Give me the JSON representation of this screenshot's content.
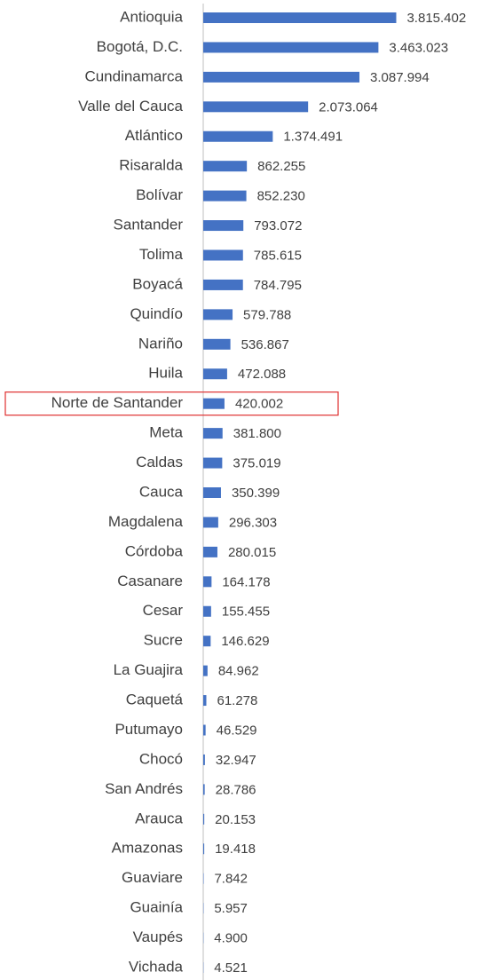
{
  "chart_data": {
    "type": "barh",
    "categories": [
      "Antioquia",
      "Bogotá, D.C.",
      "Cundinamarca",
      "Valle del Cauca",
      "Atlántico",
      "Risaralda",
      "Bolívar",
      "Santander",
      "Tolima",
      "Boyacá",
      "Quindío",
      "Nariño",
      "Huila",
      "Norte de Santander",
      "Meta",
      "Caldas",
      "Cauca",
      "Magdalena",
      "Córdoba",
      "Casanare",
      "Cesar",
      "Sucre",
      "La Guajira",
      "Caquetá",
      "Putumayo",
      "Chocó",
      "San Andrés",
      "Arauca",
      "Amazonas",
      "Guaviare",
      "Guainía",
      "Vaupés",
      "Vichada"
    ],
    "values": [
      3815402,
      3463023,
      3087994,
      2073064,
      1374491,
      862255,
      852230,
      793072,
      785615,
      784795,
      579788,
      536867,
      472088,
      420002,
      381800,
      375019,
      350399,
      296303,
      280015,
      164178,
      155455,
      146629,
      84962,
      61278,
      46529,
      32947,
      28786,
      20153,
      19418,
      7842,
      5957,
      4900,
      4521
    ],
    "value_labels": [
      "3.815.402",
      "3.463.023",
      "3.087.994",
      "2.073.064",
      "1.374.491",
      "862.255",
      "852.230",
      "793.072",
      "785.615",
      "784.795",
      "579.788",
      "536.867",
      "472.088",
      "420.002",
      "381.800",
      "375.019",
      "350.399",
      "296.303",
      "280.015",
      "164.178",
      "155.455",
      "146.629",
      "84.962",
      "61.278",
      "46.529",
      "32.947",
      "28.786",
      "20.153",
      "19.418",
      "7.842",
      "5.957",
      "4.900",
      "4.521"
    ],
    "color": "#4472c4",
    "xlim": [
      0,
      4000000
    ]
  }
}
